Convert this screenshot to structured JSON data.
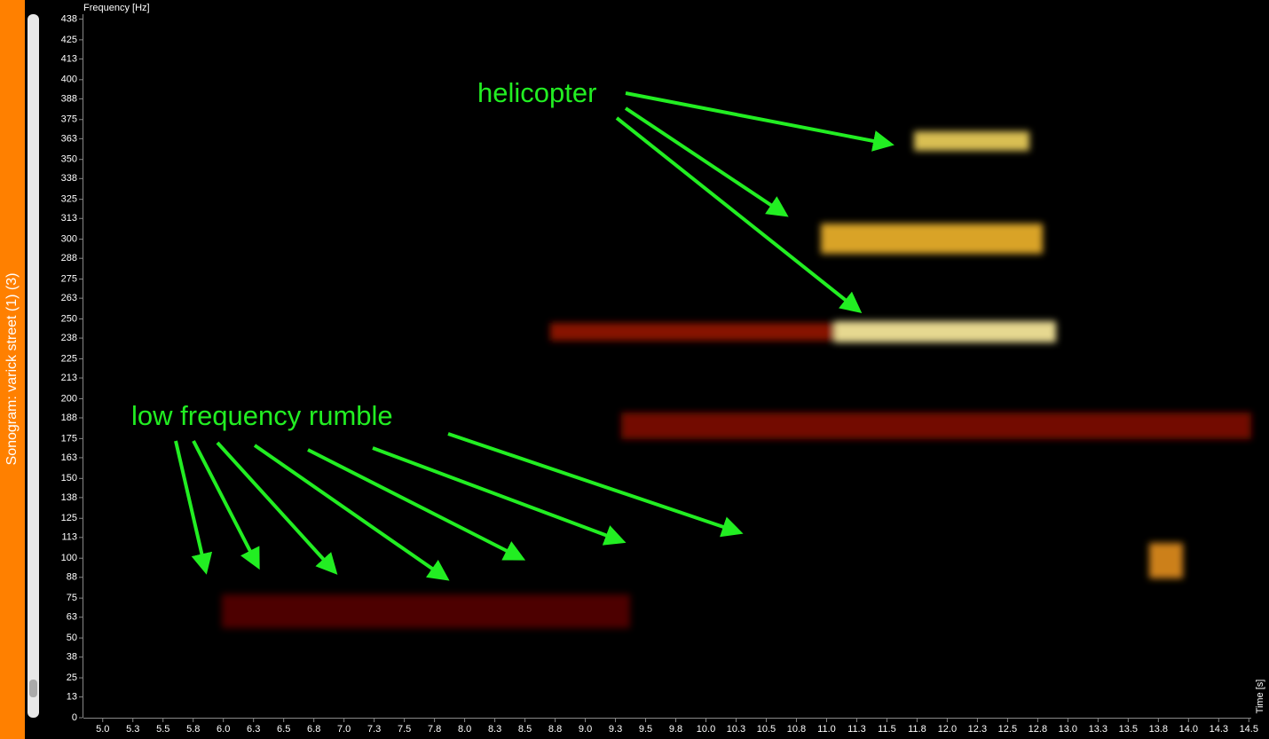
{
  "chart_data": {
    "type": "spectrogram",
    "title": "Sonogram: varick street (1) (3)",
    "y_label": "Frequency [Hz]",
    "x_label": "Time [s]",
    "annotations": [
      "helicopter",
      "low frequency rumble"
    ],
    "ylim": [
      0,
      438
    ],
    "yticks": [
      0,
      13,
      25,
      38,
      50,
      63,
      75,
      88,
      100,
      113,
      125,
      138,
      150,
      163,
      175,
      188,
      200,
      213,
      225,
      238,
      250,
      263,
      275,
      288,
      300,
      313,
      325,
      338,
      350,
      363,
      375,
      388,
      400,
      413,
      425,
      438
    ],
    "xlim": [
      4.84,
      14.52
    ],
    "xticks": [
      {
        "value": 5,
        "label": "5.0"
      },
      {
        "value": 5.25,
        "label": "5.3"
      },
      {
        "value": 5.5,
        "label": "5.5"
      },
      {
        "value": 5.75,
        "label": "5.8"
      },
      {
        "value": 6,
        "label": "6.0"
      },
      {
        "value": 6.25,
        "label": "6.3"
      },
      {
        "value": 6.5,
        "label": "6.5"
      },
      {
        "value": 6.75,
        "label": "6.8"
      },
      {
        "value": 7,
        "label": "7.0"
      },
      {
        "value": 7.25,
        "label": "7.3"
      },
      {
        "value": 7.5,
        "label": "7.5"
      },
      {
        "value": 7.75,
        "label": "7.8"
      },
      {
        "value": 8,
        "label": "8.0"
      },
      {
        "value": 8.25,
        "label": "8.3"
      },
      {
        "value": 8.5,
        "label": "8.5"
      },
      {
        "value": 8.75,
        "label": "8.8"
      },
      {
        "value": 9,
        "label": "9.0"
      },
      {
        "value": 9.25,
        "label": "9.3"
      },
      {
        "value": 9.5,
        "label": "9.5"
      },
      {
        "value": 9.75,
        "label": "9.8"
      },
      {
        "value": 10,
        "label": "10.0"
      },
      {
        "value": 10.25,
        "label": "10.3"
      },
      {
        "value": 10.5,
        "label": "10.5"
      },
      {
        "value": 10.75,
        "label": "10.8"
      },
      {
        "value": 11,
        "label": "11.0"
      },
      {
        "value": 11.25,
        "label": "11.3"
      },
      {
        "value": 11.5,
        "label": "11.5"
      },
      {
        "value": 11.75,
        "label": "11.8"
      },
      {
        "value": 12,
        "label": "12.0"
      },
      {
        "value": 12.25,
        "label": "12.3"
      },
      {
        "value": 12.5,
        "label": "12.5"
      },
      {
        "value": 12.75,
        "label": "12.8"
      },
      {
        "value": 13,
        "label": "13.0"
      },
      {
        "value": 13.25,
        "label": "13.3"
      },
      {
        "value": 13.5,
        "label": "13.5"
      },
      {
        "value": 13.75,
        "label": "13.8"
      },
      {
        "value": 14,
        "label": "14.0"
      },
      {
        "value": 14.25,
        "label": "14.3"
      },
      {
        "value": 14.5,
        "label": "14.5"
      }
    ]
  }
}
